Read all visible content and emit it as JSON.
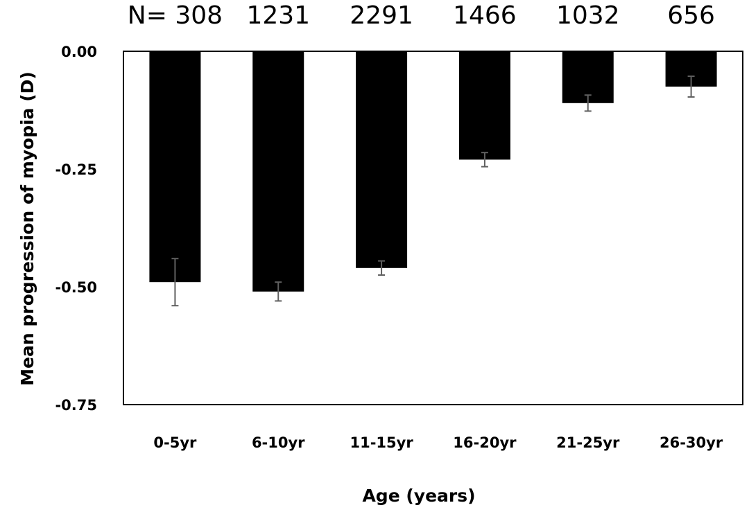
{
  "chart_data": {
    "type": "bar",
    "title": "",
    "xlabel": "Age (years)",
    "ylabel": "Mean progression of myopia (D)",
    "ylim": [
      -0.75,
      0
    ],
    "yticks": [
      0,
      -0.25,
      -0.5,
      -0.75
    ],
    "ytick_labels": [
      "0.00",
      "-0.25",
      "-0.50",
      "-0.75"
    ],
    "categories": [
      "0-5yr",
      "6-10yr",
      "11-15yr",
      "16-20yr",
      "21-25yr",
      "26-30yr"
    ],
    "values": [
      -0.49,
      -0.51,
      -0.46,
      -0.23,
      -0.11,
      -0.075
    ],
    "error": [
      0.05,
      0.02,
      0.015,
      0.015,
      0.017,
      0.022
    ],
    "n_prefix": "N=",
    "n_values": [
      "308",
      "1231",
      "2291",
      "1466",
      "1032",
      "656"
    ],
    "grid": false,
    "legend": "none",
    "bar_color": "#000000",
    "error_color": "#606060"
  }
}
